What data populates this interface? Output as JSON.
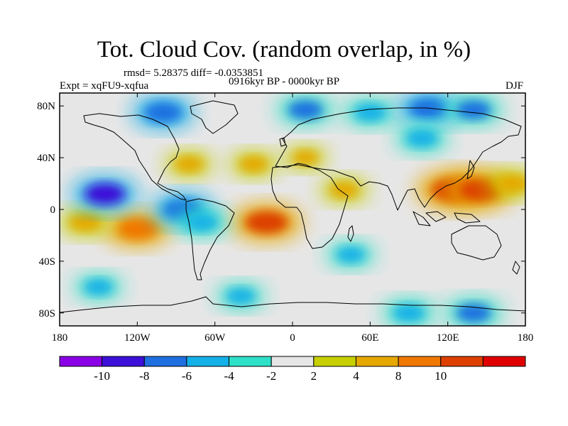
{
  "title": "Tot. Cloud Cov. (random overlap, in %)",
  "stats": "rmsd= 5.28375 diff= -0.0353851",
  "period": "0916kyr BP - 0000kyr BP",
  "experiment": "Expt = xqFU9-xqfua",
  "season": "DJF",
  "map": {
    "projection": "cylindrical equidistant",
    "lon_range": [
      -180,
      180
    ],
    "lat_range": [
      -90,
      90
    ],
    "x_ticks": [
      {
        "value": -180,
        "label": "180"
      },
      {
        "value": -120,
        "label": "120W"
      },
      {
        "value": -60,
        "label": "60W"
      },
      {
        "value": 0,
        "label": "0"
      },
      {
        "value": 60,
        "label": "60E"
      },
      {
        "value": 120,
        "label": "120E"
      },
      {
        "value": 180,
        "label": "180"
      }
    ],
    "y_ticks": [
      {
        "value": 80,
        "label": "80N"
      },
      {
        "value": 40,
        "label": "40N"
      },
      {
        "value": 0,
        "label": "0"
      },
      {
        "value": -40,
        "label": "40S"
      },
      {
        "value": -80,
        "label": "80S"
      }
    ]
  },
  "colorbar": {
    "colors": [
      "#8a00e6",
      "#3c10d8",
      "#1f6fe0",
      "#14b0e8",
      "#2ee0c8",
      "#e6e6e6",
      "#c7cf00",
      "#e6a800",
      "#f07800",
      "#dd4000",
      "#e00000"
    ],
    "tick_labels": [
      "-10",
      "-8",
      "-6",
      "-4",
      "-2",
      "2",
      "4",
      "8",
      "10"
    ]
  },
  "chart_data": {
    "type": "heatmap",
    "variable": "Tot. Cloud Cov. (random overlap, in %)",
    "x_ticks": [
      "180",
      "120W",
      "60W",
      "0",
      "60E",
      "120E",
      "180"
    ],
    "y_ticks": [
      "80N",
      "40N",
      "0",
      "40S",
      "80S"
    ],
    "levels": [
      -10,
      -8,
      -6,
      -4,
      -2,
      2,
      4,
      8,
      10
    ],
    "anomalies": [
      {
        "lon": 125,
        "lat": 15,
        "value": 11
      },
      {
        "lon": 145,
        "lat": 15,
        "value": 10
      },
      {
        "lon": 170,
        "lat": 20,
        "value": 6
      },
      {
        "lon": -120,
        "lat": -15,
        "value": 9
      },
      {
        "lon": -20,
        "lat": -10,
        "value": 10
      },
      {
        "lon": -160,
        "lat": -10,
        "value": 6
      },
      {
        "lon": -80,
        "lat": 35,
        "value": 5
      },
      {
        "lon": -30,
        "lat": 35,
        "value": 5
      },
      {
        "lon": 10,
        "lat": 40,
        "value": 4
      },
      {
        "lon": 40,
        "lat": 15,
        "value": 5
      },
      {
        "lon": -145,
        "lat": 12,
        "value": -9
      },
      {
        "lon": -85,
        "lat": 0,
        "value": -8
      },
      {
        "lon": -70,
        "lat": -10,
        "value": -6
      },
      {
        "lon": -100,
        "lat": 75,
        "value": -8
      },
      {
        "lon": 10,
        "lat": 77,
        "value": -7
      },
      {
        "lon": 60,
        "lat": 75,
        "value": -6
      },
      {
        "lon": 105,
        "lat": 78,
        "value": -8
      },
      {
        "lon": 140,
        "lat": 77,
        "value": -7
      },
      {
        "lon": 100,
        "lat": 55,
        "value": -6
      },
      {
        "lon": -150,
        "lat": -60,
        "value": -5
      },
      {
        "lon": -40,
        "lat": -67,
        "value": -5
      },
      {
        "lon": 90,
        "lat": -80,
        "value": -6
      },
      {
        "lon": 140,
        "lat": -80,
        "value": -7
      },
      {
        "lon": 45,
        "lat": -35,
        "value": -5
      }
    ]
  }
}
